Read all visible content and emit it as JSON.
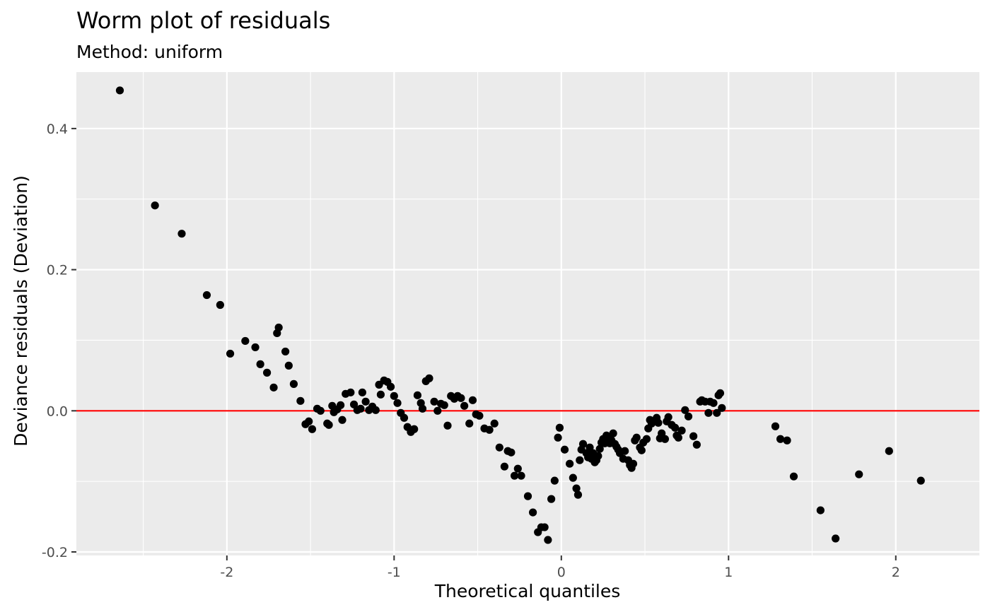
{
  "chart_data": {
    "type": "scatter",
    "title": "Worm plot of residuals",
    "subtitle": "Method: uniform",
    "xlabel": "Theoretical quantiles",
    "ylabel": "Deviance residuals (Deviation)",
    "xlim": [
      -2.9,
      2.5
    ],
    "ylim": [
      -0.205,
      0.48
    ],
    "x_ticks": [
      -2,
      -1,
      0,
      1,
      2
    ],
    "y_ticks": [
      -0.2,
      0.0,
      0.2,
      0.4
    ],
    "x_tick_labels": [
      "-2",
      "-1",
      "0",
      "1",
      "2"
    ],
    "y_tick_labels": [
      "-0.2",
      "0.0",
      "0.2",
      "0.4"
    ],
    "grid": true,
    "reference_line": {
      "y": 0.0,
      "color": "#ff0000"
    },
    "colors": {
      "panel": "#ebebeb",
      "grid": "#ffffff",
      "points": "#000000",
      "reference": "#ff0000"
    },
    "points": [
      [
        -2.64,
        0.454
      ],
      [
        -2.43,
        0.291
      ],
      [
        -2.27,
        0.251
      ],
      [
        -2.12,
        0.164
      ],
      [
        -2.04,
        0.15
      ],
      [
        -1.98,
        0.081
      ],
      [
        -1.89,
        0.099
      ],
      [
        -1.83,
        0.09
      ],
      [
        -1.8,
        0.066
      ],
      [
        -1.76,
        0.054
      ],
      [
        -1.72,
        0.033
      ],
      [
        -1.7,
        0.11
      ],
      [
        -1.69,
        0.118
      ],
      [
        -1.65,
        0.084
      ],
      [
        -1.63,
        0.064
      ],
      [
        -1.6,
        0.038
      ],
      [
        -1.56,
        0.014
      ],
      [
        -1.53,
        -0.019
      ],
      [
        -1.51,
        -0.015
      ],
      [
        -1.49,
        -0.026
      ],
      [
        -1.46,
        0.003
      ],
      [
        -1.44,
        0.0
      ],
      [
        -1.4,
        -0.018
      ],
      [
        -1.39,
        -0.02
      ],
      [
        -1.37,
        0.007
      ],
      [
        -1.36,
        -0.002
      ],
      [
        -1.34,
        0.002
      ],
      [
        -1.32,
        0.008
      ],
      [
        -1.31,
        -0.013
      ],
      [
        -1.29,
        0.024
      ],
      [
        -1.26,
        0.026
      ],
      [
        -1.24,
        0.009
      ],
      [
        -1.22,
        0.001
      ],
      [
        -1.2,
        0.003
      ],
      [
        -1.19,
        0.026
      ],
      [
        -1.17,
        0.013
      ],
      [
        -1.15,
        0.001
      ],
      [
        -1.13,
        0.006
      ],
      [
        -1.11,
        0.001
      ],
      [
        -1.09,
        0.037
      ],
      [
        -1.08,
        0.023
      ],
      [
        -1.06,
        0.043
      ],
      [
        -1.04,
        0.041
      ],
      [
        -1.02,
        0.034
      ],
      [
        -1.0,
        0.021
      ],
      [
        -0.98,
        0.011
      ],
      [
        -0.96,
        -0.003
      ],
      [
        -0.94,
        -0.01
      ],
      [
        -0.92,
        -0.023
      ],
      [
        -0.9,
        -0.03
      ],
      [
        -0.88,
        -0.026
      ],
      [
        -0.86,
        0.022
      ],
      [
        -0.84,
        0.011
      ],
      [
        -0.83,
        0.003
      ],
      [
        -0.81,
        0.042
      ],
      [
        -0.79,
        0.046
      ],
      [
        -0.76,
        0.013
      ],
      [
        -0.74,
        0.0
      ],
      [
        -0.72,
        0.01
      ],
      [
        -0.7,
        0.008
      ],
      [
        -0.68,
        -0.021
      ],
      [
        -0.66,
        0.021
      ],
      [
        -0.64,
        0.017
      ],
      [
        -0.62,
        0.021
      ],
      [
        -0.6,
        0.018
      ],
      [
        -0.58,
        0.007
      ],
      [
        -0.55,
        -0.018
      ],
      [
        -0.53,
        0.015
      ],
      [
        -0.51,
        -0.005
      ],
      [
        -0.49,
        -0.007
      ],
      [
        -0.46,
        -0.025
      ],
      [
        -0.43,
        -0.027
      ],
      [
        -0.4,
        -0.018
      ],
      [
        -0.37,
        -0.052
      ],
      [
        -0.34,
        -0.079
      ],
      [
        -0.32,
        -0.057
      ],
      [
        -0.3,
        -0.059
      ],
      [
        -0.28,
        -0.092
      ],
      [
        -0.26,
        -0.082
      ],
      [
        -0.24,
        -0.092
      ],
      [
        -0.2,
        -0.121
      ],
      [
        -0.17,
        -0.144
      ],
      [
        -0.14,
        -0.172
      ],
      [
        -0.12,
        -0.165
      ],
      [
        -0.1,
        -0.165
      ],
      [
        -0.08,
        -0.183
      ],
      [
        -0.06,
        -0.125
      ],
      [
        -0.04,
        -0.099
      ],
      [
        -0.02,
        -0.038
      ],
      [
        -0.01,
        -0.024
      ],
      [
        0.02,
        -0.055
      ],
      [
        0.05,
        -0.075
      ],
      [
        0.07,
        -0.095
      ],
      [
        0.09,
        -0.11
      ],
      [
        0.1,
        -0.119
      ],
      [
        0.11,
        -0.07
      ],
      [
        0.12,
        -0.055
      ],
      [
        0.13,
        -0.047
      ],
      [
        0.15,
        -0.06
      ],
      [
        0.16,
        -0.066
      ],
      [
        0.17,
        -0.052
      ],
      [
        0.18,
        -0.068
      ],
      [
        0.19,
        -0.06
      ],
      [
        0.2,
        -0.073
      ],
      [
        0.21,
        -0.07
      ],
      [
        0.22,
        -0.064
      ],
      [
        0.23,
        -0.054
      ],
      [
        0.24,
        -0.045
      ],
      [
        0.25,
        -0.04
      ],
      [
        0.26,
        -0.046
      ],
      [
        0.27,
        -0.035
      ],
      [
        0.28,
        -0.04
      ],
      [
        0.29,
        -0.046
      ],
      [
        0.3,
        -0.042
      ],
      [
        0.31,
        -0.032
      ],
      [
        0.32,
        -0.047
      ],
      [
        0.33,
        -0.051
      ],
      [
        0.34,
        -0.055
      ],
      [
        0.35,
        -0.06
      ],
      [
        0.37,
        -0.068
      ],
      [
        0.38,
        -0.057
      ],
      [
        0.4,
        -0.07
      ],
      [
        0.41,
        -0.077
      ],
      [
        0.42,
        -0.081
      ],
      [
        0.43,
        -0.075
      ],
      [
        0.44,
        -0.042
      ],
      [
        0.45,
        -0.038
      ],
      [
        0.47,
        -0.052
      ],
      [
        0.48,
        -0.056
      ],
      [
        0.49,
        -0.045
      ],
      [
        0.51,
        -0.04
      ],
      [
        0.52,
        -0.025
      ],
      [
        0.53,
        -0.013
      ],
      [
        0.54,
        -0.018
      ],
      [
        0.56,
        -0.014
      ],
      [
        0.57,
        -0.01
      ],
      [
        0.58,
        -0.017
      ],
      [
        0.59,
        -0.039
      ],
      [
        0.6,
        -0.032
      ],
      [
        0.62,
        -0.04
      ],
      [
        0.63,
        -0.015
      ],
      [
        0.64,
        -0.009
      ],
      [
        0.66,
        -0.02
      ],
      [
        0.68,
        -0.024
      ],
      [
        0.69,
        -0.035
      ],
      [
        0.7,
        -0.038
      ],
      [
        0.72,
        -0.028
      ],
      [
        0.74,
        0.001
      ],
      [
        0.76,
        -0.008
      ],
      [
        0.79,
        -0.036
      ],
      [
        0.81,
        -0.048
      ],
      [
        0.83,
        0.013
      ],
      [
        0.84,
        0.015
      ],
      [
        0.86,
        0.013
      ],
      [
        0.88,
        -0.003
      ],
      [
        0.89,
        0.013
      ],
      [
        0.91,
        0.011
      ],
      [
        0.93,
        -0.003
      ],
      [
        0.94,
        0.022
      ],
      [
        0.95,
        0.025
      ],
      [
        0.96,
        0.004
      ],
      [
        1.28,
        -0.022
      ],
      [
        1.31,
        -0.04
      ],
      [
        1.35,
        -0.042
      ],
      [
        1.39,
        -0.093
      ],
      [
        1.55,
        -0.141
      ],
      [
        1.64,
        -0.181
      ],
      [
        1.78,
        -0.09
      ],
      [
        1.96,
        -0.057
      ],
      [
        2.15,
        -0.099
      ]
    ]
  }
}
